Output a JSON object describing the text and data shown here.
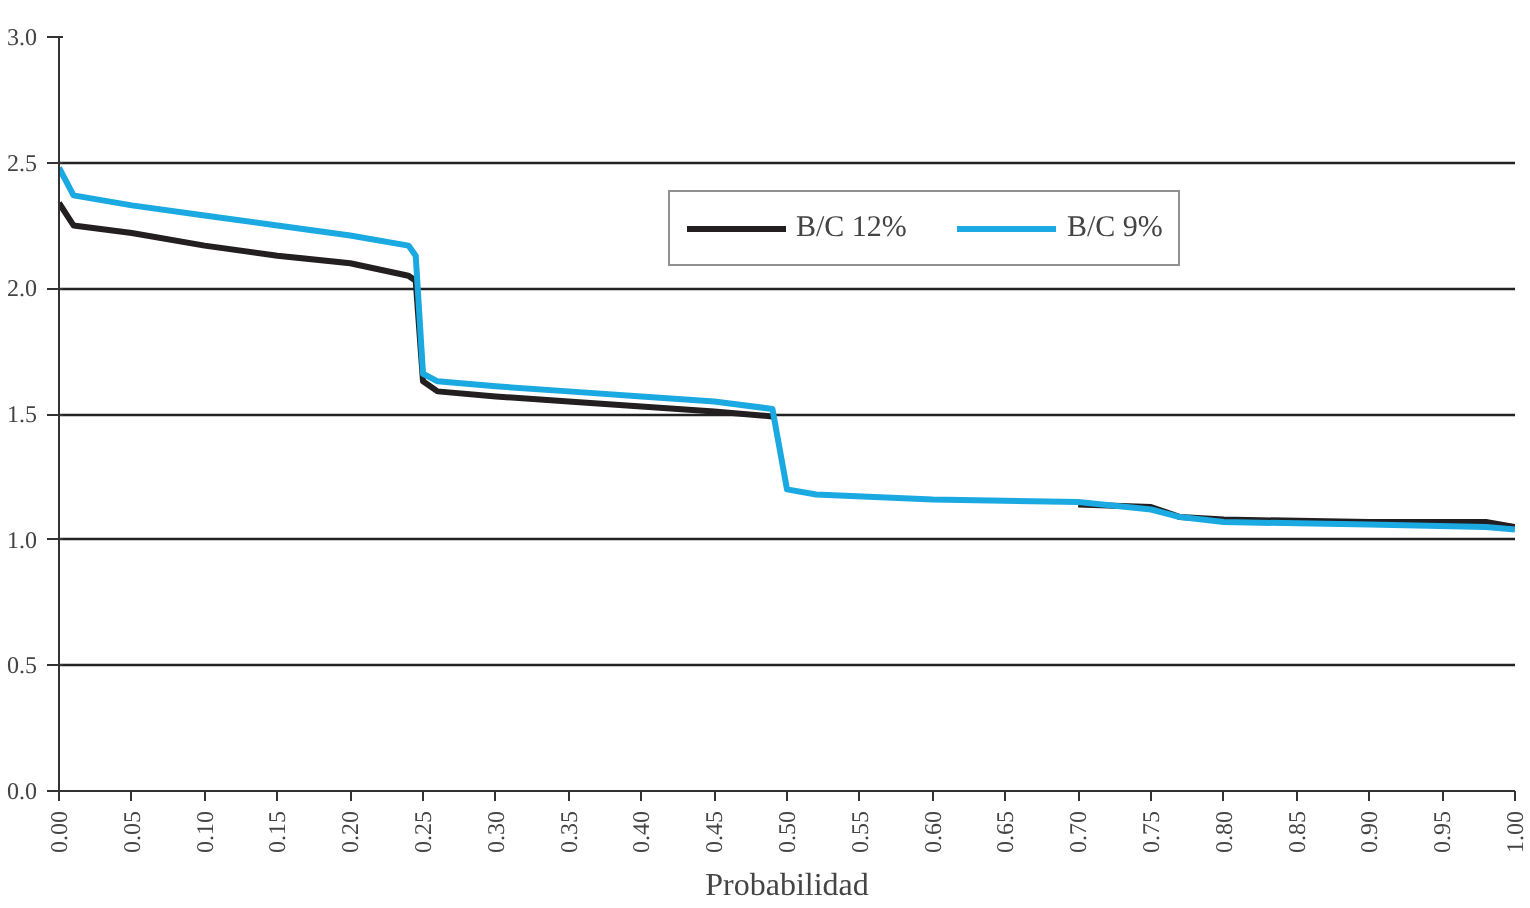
{
  "chart_data": {
    "type": "line",
    "xlabel": "Probabilidad",
    "x": [
      0,
      0.01,
      0.05,
      0.1,
      0.15,
      0.2,
      0.24,
      0.245,
      0.25,
      0.26,
      0.3,
      0.35,
      0.4,
      0.45,
      0.49,
      0.5,
      0.52,
      0.6,
      0.7,
      0.75,
      0.77,
      0.8,
      0.9,
      0.98,
      1.0
    ],
    "series": [
      {
        "name": "B/C 12%",
        "color": "#231f20",
        "values": [
          2.34,
          2.25,
          2.22,
          2.17,
          2.13,
          2.1,
          2.05,
          2.03,
          1.63,
          1.59,
          1.57,
          1.55,
          1.53,
          1.51,
          1.49,
          null,
          null,
          null,
          1.14,
          1.13,
          1.09,
          1.08,
          1.07,
          1.07,
          1.05
        ]
      },
      {
        "name": "B/C 9%",
        "color": "#1ba9e1",
        "values": [
          2.48,
          2.37,
          2.33,
          2.29,
          2.25,
          2.21,
          2.17,
          2.13,
          1.66,
          1.63,
          1.61,
          1.59,
          1.57,
          1.55,
          1.52,
          1.2,
          1.18,
          1.16,
          1.15,
          1.12,
          1.09,
          1.07,
          1.06,
          1.05,
          1.04
        ]
      }
    ],
    "xlim": [
      0,
      1
    ],
    "ylim": [
      0,
      3
    ],
    "xticks": [
      {
        "value": 0,
        "label": "0.00"
      },
      {
        "value": 0.05,
        "label": "0.05"
      },
      {
        "value": 0.1,
        "label": "0.10"
      },
      {
        "value": 0.15,
        "label": "0.15"
      },
      {
        "value": 0.2,
        "label": "0.20"
      },
      {
        "value": 0.25,
        "label": "0.25"
      },
      {
        "value": 0.3,
        "label": "0.30"
      },
      {
        "value": 0.35,
        "label": "0.35"
      },
      {
        "value": 0.4,
        "label": "0.40"
      },
      {
        "value": 0.45,
        "label": "0.45"
      },
      {
        "value": 0.5,
        "label": "0.50"
      },
      {
        "value": 0.55,
        "label": "0.55"
      },
      {
        "value": 0.6,
        "label": "0.60"
      },
      {
        "value": 0.65,
        "label": "0.65"
      },
      {
        "value": 0.7,
        "label": "0.70"
      },
      {
        "value": 0.75,
        "label": "0.75"
      },
      {
        "value": 0.8,
        "label": "0.80"
      },
      {
        "value": 0.85,
        "label": "0.85"
      },
      {
        "value": 0.9,
        "label": "0.90"
      },
      {
        "value": 0.95,
        "label": "0.95"
      },
      {
        "value": 1,
        "label": "1.00"
      }
    ],
    "yticks": [
      {
        "value": 0,
        "label": "0.0"
      },
      {
        "value": 0.5,
        "label": "0.5"
      },
      {
        "value": 1,
        "label": "1.0"
      },
      {
        "value": 1.5,
        "label": "1.5"
      },
      {
        "value": 2,
        "label": "2.0"
      },
      {
        "value": 2.5,
        "label": "2.5"
      },
      {
        "value": 3,
        "label": "3.0"
      }
    ],
    "grid": "y",
    "legend": "top right",
    "marker": "none",
    "line_style": "solid"
  }
}
